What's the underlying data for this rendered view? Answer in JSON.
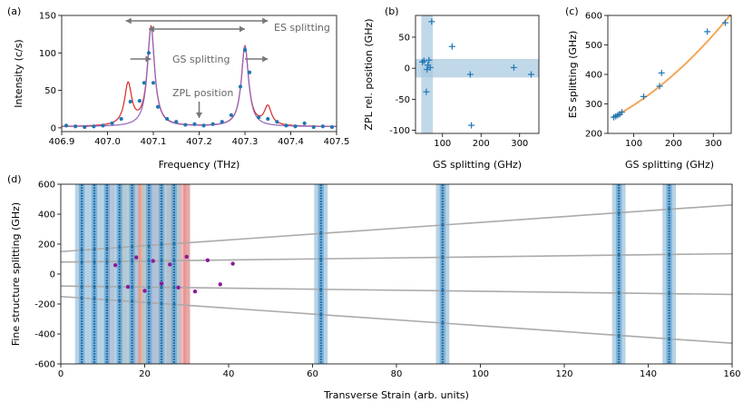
{
  "colors": {
    "blue": "#1f77b4",
    "light_blue": "#a6c8e0",
    "purple": "#8b1a9a",
    "lorentz_purple": "#9467bd",
    "red": "#d62728",
    "orange": "#f5a55a",
    "gray": "#aaaaaa",
    "annotation_gray": "#777777"
  },
  "chart_data": [
    {
      "panel_label": "(a)",
      "type": "line",
      "xlabel": "Frequency (THz)",
      "ylabel": "Intensity (c/s)",
      "xlim": [
        406.9,
        407.5
      ],
      "ylim": [
        -5,
        150
      ],
      "xticks": [
        "406.9",
        "407.0",
        "407.1",
        "407.2",
        "407.3",
        "407.4",
        "407.5"
      ],
      "yticks": [
        "0",
        "50",
        "100",
        "150"
      ],
      "peaks_thz": [
        407.045,
        407.095,
        407.3,
        407.35
      ],
      "peak_heights": [
        55,
        132,
        107,
        25
      ],
      "data_points": {
        "x": [
          406.91,
          406.93,
          406.95,
          406.97,
          406.99,
          407.01,
          407.03,
          407.05,
          407.07,
          407.08,
          407.09,
          407.1,
          407.11,
          407.13,
          407.15,
          407.17,
          407.19,
          407.21,
          407.23,
          407.25,
          407.27,
          407.29,
          407.3,
          407.31,
          407.33,
          407.35,
          407.37,
          407.39,
          407.41,
          407.43,
          407.45,
          407.47,
          407.49
        ],
        "y": [
          3,
          2,
          1,
          2,
          3,
          6,
          12,
          35,
          36,
          60,
          100,
          60,
          28,
          12,
          8,
          4,
          5,
          3,
          5,
          8,
          17,
          55,
          104,
          74,
          14,
          12,
          8,
          3,
          2,
          6,
          1,
          2,
          1
        ]
      },
      "annotations": [
        "ES splitting",
        "GS splitting",
        "ZPL position"
      ]
    },
    {
      "panel_label": "(b)",
      "type": "scatter",
      "xlabel": "GS splitting (GHz)",
      "ylabel": "ZPL rel. position (GHz)",
      "xlim": [
        30,
        350
      ],
      "ylim": [
        -105,
        85
      ],
      "xticks": [
        "100",
        "200",
        "300"
      ],
      "yticks": [
        "-100",
        "-50",
        "0",
        "50"
      ],
      "points": {
        "x": [
          48,
          52,
          58,
          60,
          62,
          65,
          68,
          72,
          125,
          172,
          175,
          285,
          330
        ],
        "y": [
          10,
          12,
          -38,
          -2,
          5,
          13,
          1,
          75,
          35,
          -10,
          -92,
          1,
          -10
        ]
      },
      "shaded_band_x": [
        45,
        75
      ],
      "shaded_band_y": [
        -15,
        15
      ]
    },
    {
      "panel_label": "(c)",
      "type": "scatter",
      "xlabel": "GS splitting (GHz)",
      "ylabel": "ES splitting (GHz)",
      "xlim": [
        35,
        345
      ],
      "ylim": [
        200,
        600
      ],
      "xticks": [
        "100",
        "200",
        "300"
      ],
      "yticks": [
        "200",
        "300",
        "400",
        "500",
        "600"
      ],
      "points": {
        "x": [
          50,
          55,
          60,
          65,
          70,
          125,
          165,
          170,
          285,
          330
        ],
        "y": [
          255,
          258,
          262,
          265,
          272,
          325,
          360,
          405,
          545,
          575
        ]
      },
      "fit_label": ""
    },
    {
      "panel_label": "(d)",
      "type": "line",
      "xlabel": "Transverse Strain (arb. units)",
      "ylabel": "Fine structure splitting (GHz)",
      "xlim": [
        0,
        160
      ],
      "ylim": [
        -600,
        600
      ],
      "xticks": [
        "0",
        "20",
        "40",
        "60",
        "80",
        "100",
        "120",
        "140",
        "160"
      ],
      "yticks": [
        "-600",
        "-400",
        "-200",
        "0",
        "200",
        "400",
        "600"
      ],
      "branches": [
        {
          "y0": 150,
          "slope": 1.95
        },
        {
          "y0": 80,
          "slope": 0.35
        },
        {
          "y0": -80,
          "slope": -0.35
        },
        {
          "y0": -150,
          "slope": -1.95
        }
      ],
      "blue_columns_strain": [
        5,
        8,
        11,
        14,
        17,
        21,
        24,
        27,
        62,
        91,
        133,
        145
      ],
      "colored_columns_strain": [
        12,
        15,
        16,
        18,
        19,
        20,
        22,
        23,
        25,
        26,
        28,
        29,
        30
      ],
      "purple_dots_strain": [
        13,
        16,
        18,
        20,
        22,
        24,
        26,
        28,
        30,
        32,
        35,
        38,
        41
      ]
    }
  ],
  "panel_a_annotations": {
    "es": "ES splitting",
    "gs": "GS splitting",
    "zpl": "ZPL position"
  },
  "panel_labels": {
    "a": "(a)",
    "b": "(b)",
    "c": "(c)",
    "d": "(d)"
  },
  "axis_labels": {
    "a_x": "Frequency (THz)",
    "a_y": "Intensity (c/s)",
    "b_x": "GS splitting (GHz)",
    "b_y": "ZPL rel. position (GHz)",
    "c_x": "GS splitting (GHz)",
    "c_y": "ES splitting (GHz)",
    "d_x": "Transverse Strain (arb. units)",
    "d_y": "Fine structure splitting (GHz)"
  }
}
